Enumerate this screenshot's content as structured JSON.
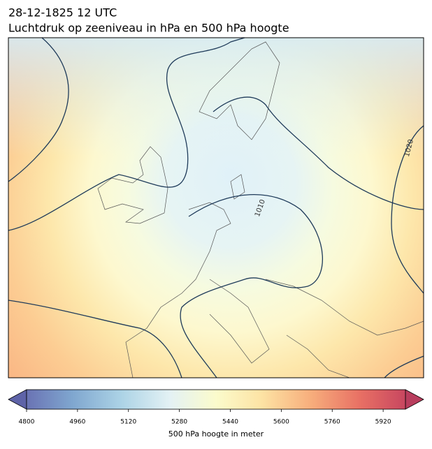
{
  "map": {
    "title_lines": [
      "28-12-1825 12 UTC",
      "Luchtdruk op zeeniveau in hPa en 500 hPa hoogte"
    ],
    "contour_labels": [
      "1010",
      "1020"
    ],
    "colorbar": {
      "label": "500 hPa hoogte in meter",
      "clim": [
        4800,
        5990
      ],
      "ticks": [
        4800,
        4960,
        5120,
        5280,
        5440,
        5600,
        5760,
        5920
      ]
    }
  }
}
